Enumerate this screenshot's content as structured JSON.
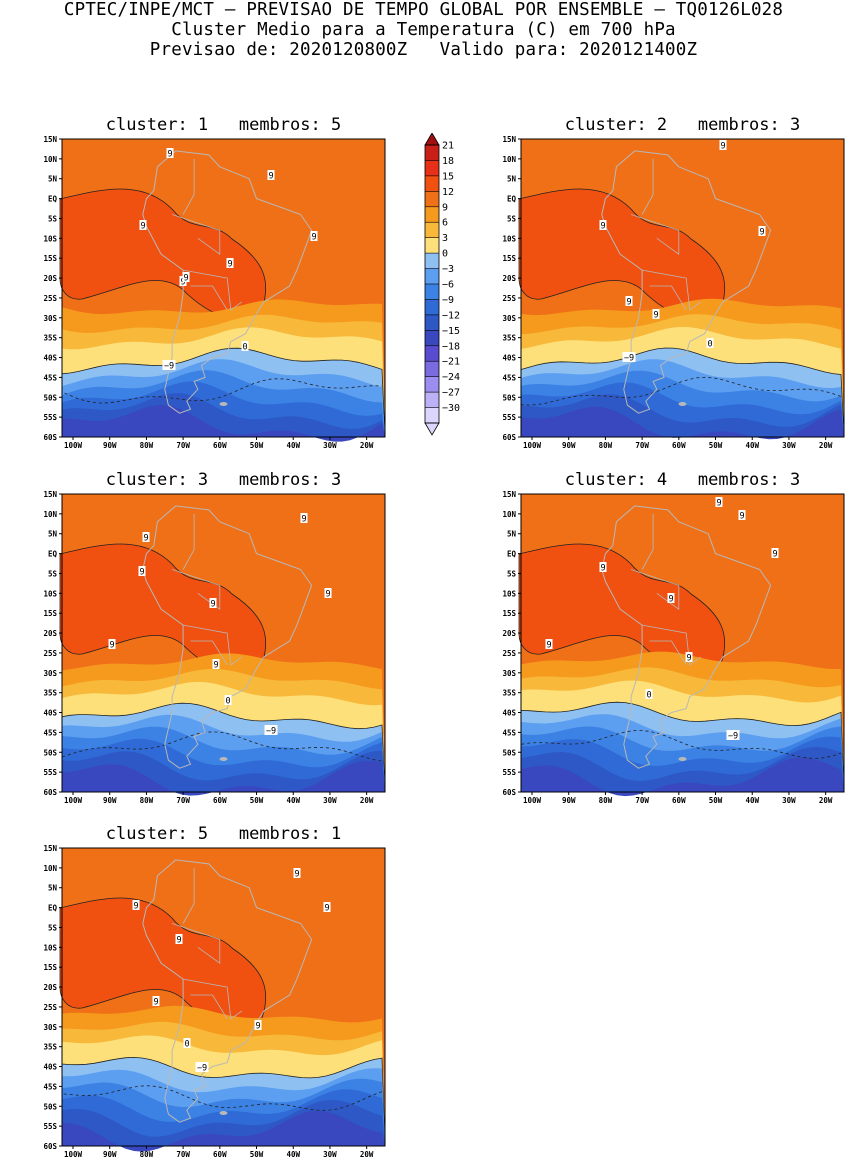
{
  "header": {
    "line1": "CPTEC/INPE/MCT — PREVISAO DE TEMPO GLOBAL POR ENSEMBLE — TQ0126L028",
    "line2": "Cluster Medio para a Temperatura (C) em 700 hPa",
    "line3": "Previsao de: 2020120800Z   Valido para: 2020121400Z"
  },
  "axes": {
    "lat_ticks": [
      "15N",
      "10N",
      "5N",
      "EQ",
      "5S",
      "10S",
      "15S",
      "20S",
      "25S",
      "30S",
      "35S",
      "40S",
      "45S",
      "50S",
      "55S",
      "60S"
    ],
    "lon_ticks": [
      "100W",
      "90W",
      "80W",
      "70W",
      "60W",
      "50W",
      "40W",
      "30W",
      "20W"
    ]
  },
  "colorbar": {
    "levels": [
      "21",
      "18",
      "15",
      "12",
      "9",
      "6",
      "3",
      "0",
      "−3",
      "−6",
      "−9",
      "−12",
      "−15",
      "−18",
      "−21",
      "−24",
      "−27",
      "−30"
    ],
    "colors": [
      "#a01010",
      "#c82018",
      "#e63018",
      "#f05010",
      "#f07018",
      "#f69a1e",
      "#f8b83a",
      "#fde07a",
      "#8ec0f2",
      "#5c9ef0",
      "#3c82e4",
      "#2f6ad6",
      "#2d58c6",
      "#3a48c0",
      "#5a4cd0",
      "#7a6ce0",
      "#9c8ef0",
      "#bcb0f6",
      "#dcd6fc"
    ]
  },
  "clusters": [
    {
      "title": "cluster: 1   membros: 5",
      "labels": [
        "9",
        "9",
        "9",
        "9",
        "9",
        "9",
        "9",
        "0",
        "−9"
      ]
    },
    {
      "title": "cluster: 2   membros: 3",
      "labels": [
        "9",
        "9",
        "9",
        "9",
        "9",
        "0",
        "−9"
      ]
    },
    {
      "title": "cluster: 3   membros: 3",
      "labels": [
        "9",
        "9",
        "9",
        "9",
        "9",
        "9",
        "9",
        "0",
        "−9"
      ]
    },
    {
      "title": "cluster: 4   membros: 3",
      "labels": [
        "9",
        "9",
        "9",
        "9",
        "9",
        "9",
        "9",
        "0",
        "−9"
      ]
    },
    {
      "title": "cluster: 5   membros: 1",
      "labels": [
        "9",
        "9",
        "9",
        "9",
        "9",
        "9",
        "0",
        "−9"
      ]
    }
  ]
}
